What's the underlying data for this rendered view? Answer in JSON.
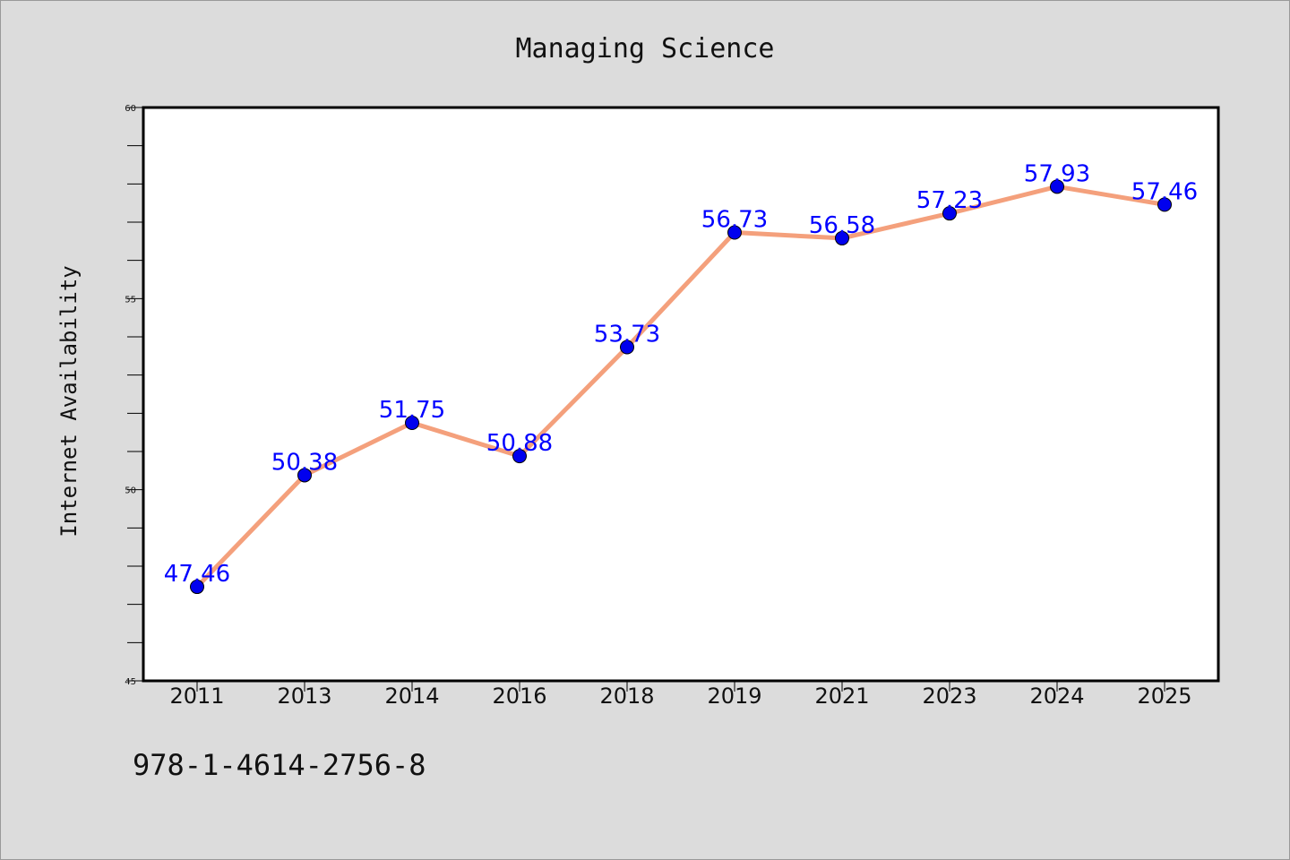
{
  "chart_data": {
    "type": "line",
    "title": "Managing Science",
    "xlabel": "",
    "ylabel": "Internet Availability",
    "categories": [
      "2011",
      "2013",
      "2014",
      "2016",
      "2018",
      "2019",
      "2021",
      "2023",
      "2024",
      "2025"
    ],
    "series": [
      {
        "values": [
          47.46,
          50.38,
          51.75,
          50.88,
          53.73,
          56.73,
          56.58,
          57.23,
          57.93,
          57.46
        ]
      }
    ],
    "data_labels": [
      "47.46",
      "50.38",
      "51.75",
      "50.88",
      "53.73",
      "56.73",
      "56.58",
      "57.23",
      "57.93",
      "57.46"
    ],
    "ylim": [
      45,
      60
    ],
    "yticks": [
      45,
      50,
      55,
      60
    ],
    "ytick_labels": [
      "45",
      "50",
      "55",
      "60"
    ],
    "grid": false,
    "colors": {
      "line": "#f4a07c",
      "marker": "#0000ee",
      "label": "#0000ff"
    }
  },
  "footer": {
    "isbn": "978-1-4614-2756-8"
  }
}
